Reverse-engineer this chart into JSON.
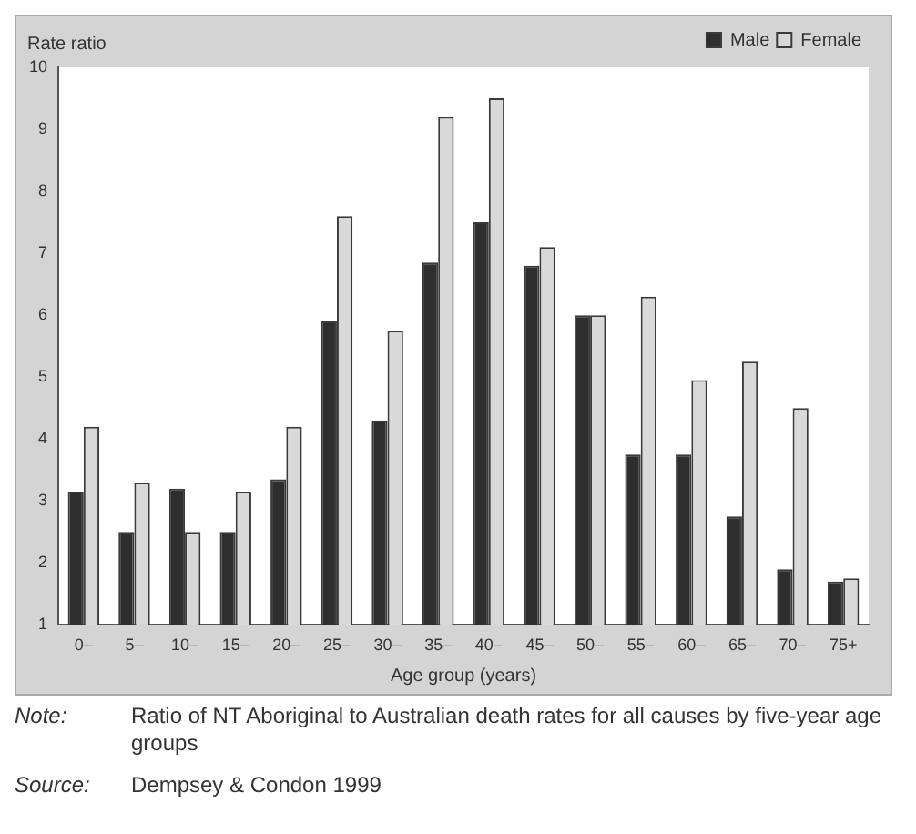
{
  "chart_data": {
    "type": "bar",
    "ylabel": "Rate ratio",
    "xlabel": "Age group (years)",
    "categories": [
      "0–",
      "5–",
      "10–",
      "15–",
      "20–",
      "25–",
      "30–",
      "35–",
      "40–",
      "45–",
      "50–",
      "55–",
      "60–",
      "65–",
      "70–",
      "75+"
    ],
    "series": [
      {
        "name": "Male",
        "color": "#2e2e2e",
        "values": [
          3.15,
          2.5,
          3.2,
          2.5,
          3.35,
          5.9,
          4.3,
          6.85,
          7.5,
          6.8,
          6.0,
          3.75,
          3.75,
          2.75,
          1.9,
          1.7
        ]
      },
      {
        "name": "Female",
        "color": "#d9d9d9",
        "values": [
          4.2,
          3.3,
          2.5,
          3.15,
          4.2,
          7.6,
          5.75,
          9.2,
          9.5,
          7.1,
          6.0,
          6.3,
          4.95,
          5.25,
          4.5,
          1.75
        ]
      }
    ],
    "ylim": [
      1,
      10
    ],
    "yticks": [
      1,
      2,
      3,
      4,
      5,
      6,
      7,
      8,
      9,
      10
    ],
    "grid": false,
    "legend": "top right",
    "annotations": [
      "Note: Ratio of NT Aboriginal to Australian death rates for all causes by five-year age groups",
      "Source: Dempsey & Condon 1999"
    ]
  }
}
